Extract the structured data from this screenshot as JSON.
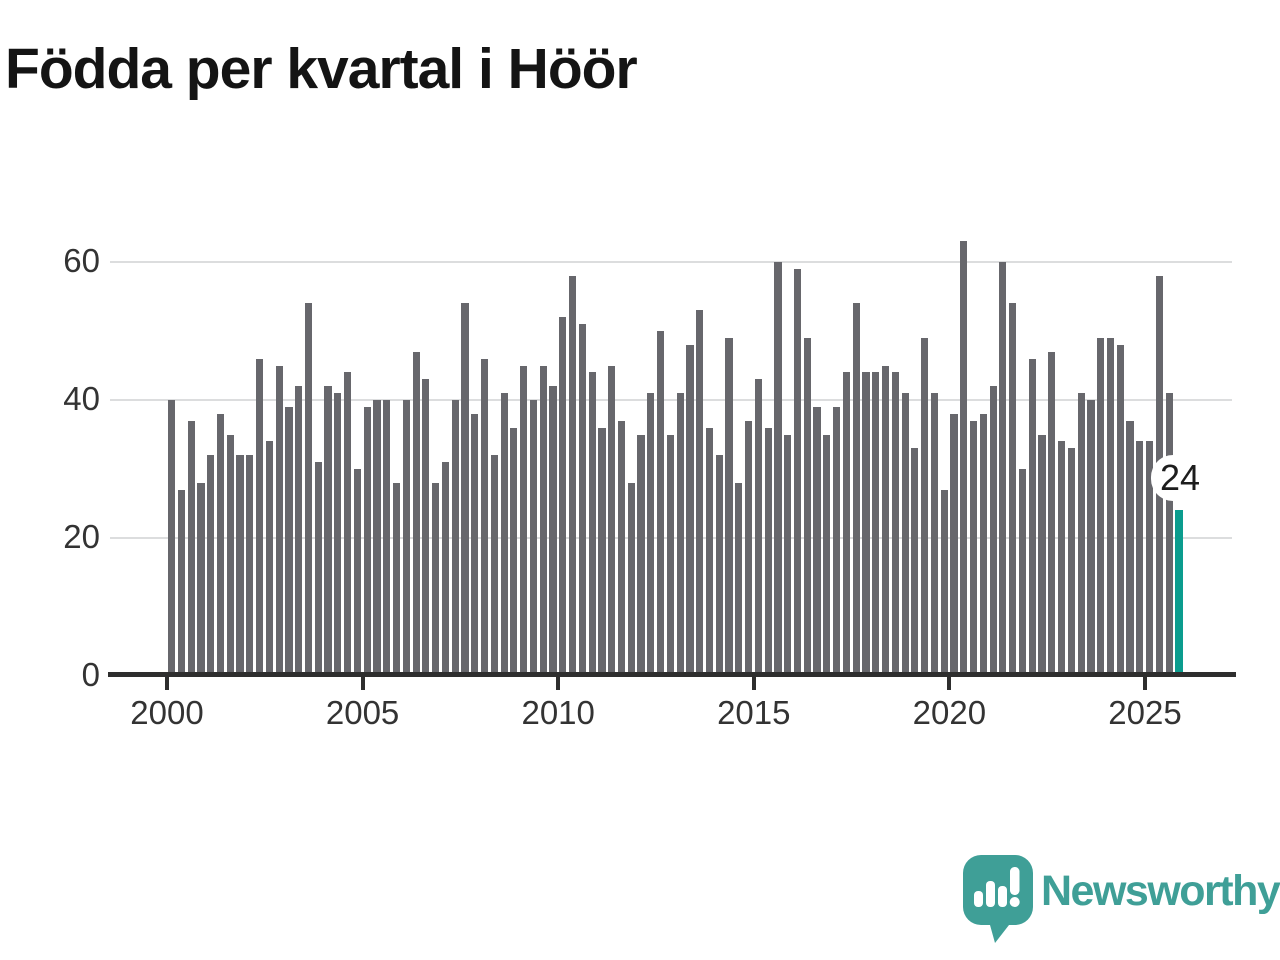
{
  "title": "Födda per kvartal i Höör",
  "chart_data": {
    "type": "bar",
    "title": "Födda per kvartal i Höör",
    "x_unit": "quarter",
    "start_year": 2000,
    "end_year": 2025,
    "series": [
      {
        "name": "Födda per kvartal",
        "values": [
          40,
          27,
          37,
          28,
          32,
          38,
          35,
          32,
          32,
          46,
          34,
          45,
          39,
          42,
          54,
          31,
          42,
          41,
          44,
          30,
          39,
          40,
          40,
          28,
          40,
          47,
          43,
          28,
          31,
          40,
          54,
          38,
          46,
          32,
          41,
          36,
          45,
          40,
          45,
          42,
          52,
          58,
          51,
          44,
          36,
          45,
          37,
          28,
          35,
          41,
          50,
          35,
          41,
          48,
          53,
          36,
          32,
          49,
          28,
          37,
          43,
          36,
          60,
          35,
          59,
          49,
          39,
          35,
          39,
          44,
          54,
          44,
          44,
          45,
          44,
          41,
          33,
          49,
          41,
          27,
          38,
          63,
          37,
          38,
          42,
          60,
          54,
          30,
          46,
          35,
          47,
          34,
          33,
          41,
          40,
          49,
          49,
          48,
          37,
          34,
          34,
          58,
          41,
          24
        ]
      }
    ],
    "x_tick_years": [
      "2000",
      "2005",
      "2010",
      "2015",
      "2020",
      "2025"
    ],
    "y_ticks": [
      "0",
      "20",
      "40",
      "60"
    ],
    "ylim": [
      0,
      65
    ],
    "grid": "horizontal",
    "legend": "none",
    "bar_color": "#67676c",
    "highlight": {
      "index": 103,
      "year": 2025,
      "quarter": 4,
      "value": 24,
      "label": "24",
      "color": "#0b9c8e"
    }
  },
  "branding": {
    "name": "Newsworthy",
    "color": "#3f9f97",
    "icon": "speech-bubble-bar-chart-icon"
  }
}
